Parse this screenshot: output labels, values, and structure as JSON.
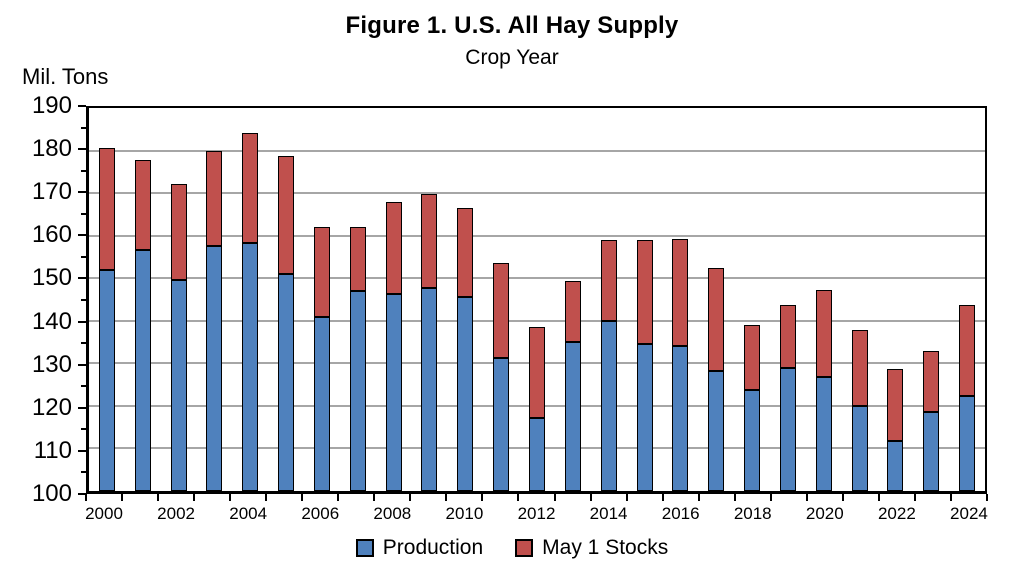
{
  "colors": {
    "production": "#4F81BD",
    "stocks": "#C0504D",
    "gridline": "#A6A6A6",
    "axis": "#000000",
    "bar_border": "#000000",
    "background": "#FFFFFF"
  },
  "chart_data": {
    "type": "bar",
    "stacked": true,
    "title": "Figure 1. U.S. All Hay Supply",
    "subtitle": "Crop Year",
    "ylabel": "Mil. Tons",
    "xlabel": "",
    "ylim": [
      100,
      190
    ],
    "ytick_interval": 10,
    "ytick_minor_interval": 5,
    "grid": "horizontal",
    "legend_position": "bottom",
    "x_tick_step": 2,
    "categories": [
      2000,
      2001,
      2002,
      2003,
      2004,
      2005,
      2006,
      2007,
      2008,
      2009,
      2010,
      2011,
      2012,
      2013,
      2014,
      2015,
      2016,
      2017,
      2018,
      2019,
      2020,
      2021,
      2022,
      2023,
      2024
    ],
    "series": [
      {
        "name": "Production",
        "color": "#4F81BD",
        "values": [
          151.9,
          156.7,
          149.6,
          157.6,
          158.2,
          151.1,
          141.0,
          146.9,
          146.3,
          147.6,
          145.6,
          131.2,
          117.2,
          135.1,
          139.9,
          134.6,
          134.1,
          128.1,
          123.7,
          128.9,
          126.8,
          119.9,
          111.8,
          118.6,
          122.4
        ]
      },
      {
        "name": "May 1 Stocks",
        "color": "#C0504D",
        "values": [
          28.8,
          21.2,
          22.5,
          22.2,
          26.0,
          27.7,
          21.1,
          15.1,
          21.6,
          22.1,
          21.0,
          22.4,
          21.3,
          14.2,
          19.0,
          24.5,
          25.1,
          24.4,
          15.3,
          14.9,
          20.5,
          18.0,
          16.8,
          14.4,
          21.2
        ]
      }
    ]
  }
}
